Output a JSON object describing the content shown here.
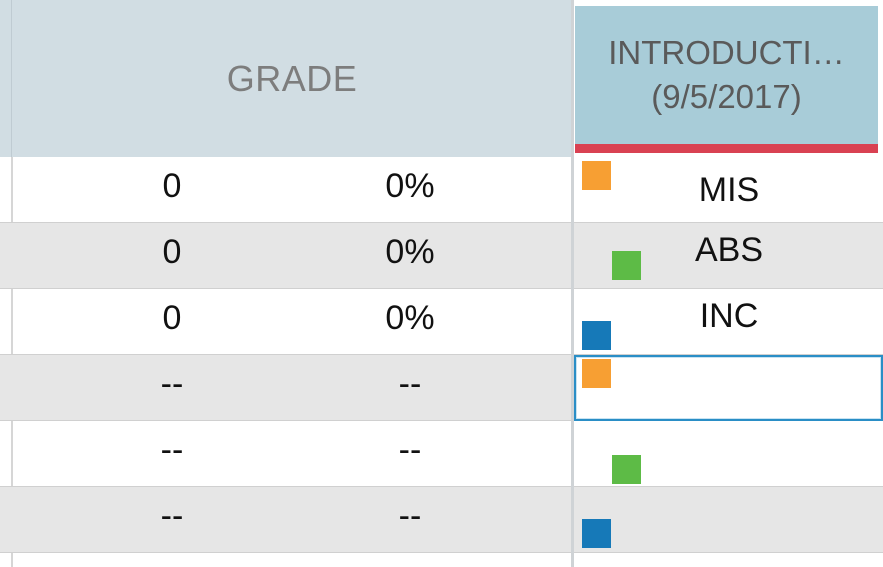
{
  "header": {
    "grade_label": "GRADE",
    "assignment_title": "INTRODUCTI…",
    "assignment_date": "(9/5/2017)",
    "assignment_status_color": "#d94152"
  },
  "grade_rows": [
    {
      "points": "0",
      "percent": "0%"
    },
    {
      "points": "0",
      "percent": "0%"
    },
    {
      "points": "0",
      "percent": "0%"
    },
    {
      "points": "--",
      "percent": "--"
    },
    {
      "points": "--",
      "percent": "--"
    },
    {
      "points": "--",
      "percent": "--"
    }
  ],
  "attendance_rows": [
    {
      "code": "MIS",
      "marker": "orange-square-icon",
      "marker_color": "#f79f33"
    },
    {
      "code": "ABS",
      "marker": "green-square-icon",
      "marker_color": "#5dbb46"
    },
    {
      "code": "INC",
      "marker": "blue-square-icon",
      "marker_color": "#1679b8"
    },
    {
      "code": "",
      "marker": "orange-square-icon",
      "marker_color": "#f79f33",
      "selected": true
    },
    {
      "code": "",
      "marker": "green-square-icon",
      "marker_color": "#5dbb46"
    },
    {
      "code": "",
      "marker": "blue-square-icon",
      "marker_color": "#1679b8"
    }
  ]
}
